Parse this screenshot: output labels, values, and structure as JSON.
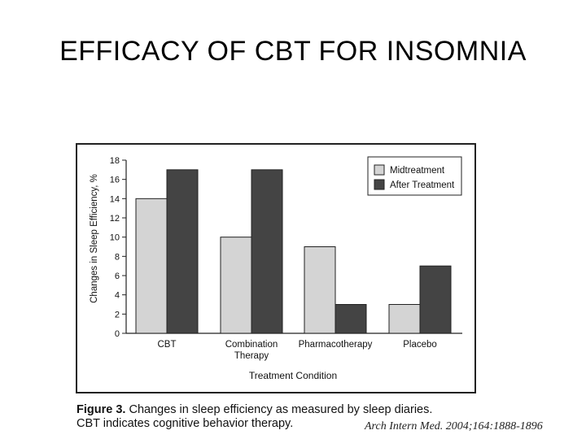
{
  "slide": {
    "title": "EFFICACY OF CBT FOR INSOMNIA"
  },
  "caption": {
    "figure_label": "Figure 3.",
    "line1_text": " Changes in sleep efficiency as measured by sleep diaries.",
    "line2_text": "CBT indicates cognitive behavior therapy."
  },
  "citation": "Arch Intern Med. 2004;164:1888-1896",
  "colors": {
    "midtreatment": "#d4d4d4",
    "after_treatment": "#444444",
    "outline": "#222222"
  },
  "chart_data": {
    "type": "bar",
    "categories": [
      [
        "CBT"
      ],
      [
        "Combination",
        "Therapy"
      ],
      [
        "Pharmacotherapy"
      ],
      [
        "Placebo"
      ]
    ],
    "series": [
      {
        "name": "Midtreatment",
        "values": [
          14,
          10,
          9,
          3
        ]
      },
      {
        "name": "After Treatment",
        "values": [
          17,
          17,
          3,
          7
        ]
      }
    ],
    "xlabel": "Treatment Condition",
    "ylabel": "Changes in Sleep Efficiency, %",
    "ylim": [
      0,
      18
    ],
    "yticks": [
      0,
      2,
      4,
      6,
      8,
      10,
      12,
      14,
      16,
      18
    ],
    "legend_position": "top-right",
    "grid": false
  }
}
